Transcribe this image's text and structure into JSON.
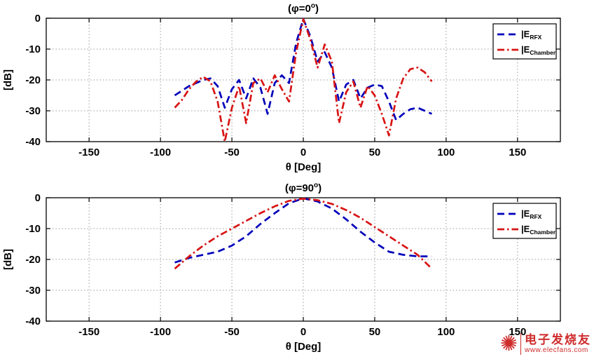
{
  "page": {
    "background": "#ffffff"
  },
  "watermark": {
    "icon": "✺",
    "line1": "电子发烧友",
    "line2": "www.elecfans.com",
    "color": "#cc2020"
  },
  "chart_data": [
    {
      "type": "line",
      "title": {
        "pre": "(φ=0",
        "sup": "o",
        "post": ")"
      },
      "xlabel": "θ [Deg]",
      "ylabel": "[dB]",
      "xlim": [
        -180,
        180
      ],
      "ylim": [
        -40,
        0
      ],
      "xticks": [
        -150,
        -100,
        -50,
        0,
        50,
        100,
        150
      ],
      "yticks": [
        0,
        -10,
        -20,
        -30,
        -40
      ],
      "grid": true,
      "legend_position": "top-right",
      "series": [
        {
          "name": "E_RFX",
          "legend_pre": "|E",
          "legend_sub": "RFX",
          "color": "#0000bb",
          "style": "dashed",
          "x": [
            -90,
            -85,
            -80,
            -75,
            -70,
            -65,
            -60,
            -55,
            -50,
            -45,
            -40,
            -35,
            -30,
            -25,
            -20,
            -15,
            -10,
            -5,
            0,
            5,
            10,
            15,
            20,
            25,
            30,
            35,
            40,
            45,
            50,
            55,
            60,
            65,
            70,
            75,
            80,
            85,
            90
          ],
          "y": [
            -25,
            -23.5,
            -22,
            -21,
            -20,
            -19.5,
            -22,
            -29,
            -23,
            -20,
            -26,
            -19.5,
            -22.5,
            -31,
            -21,
            -18.5,
            -21,
            -8,
            -0.2,
            -6,
            -14,
            -11,
            -16,
            -27,
            -21.5,
            -20,
            -26,
            -22.5,
            -21.5,
            -22,
            -27,
            -33,
            -31,
            -29.5,
            -29,
            -30,
            -31
          ]
        },
        {
          "name": "E_Chamber",
          "legend_pre": "|E",
          "legend_sub": "Chamber",
          "color": "#d81414",
          "style": "dashdot",
          "x": [
            -90,
            -85,
            -80,
            -75,
            -70,
            -65,
            -60,
            -55,
            -50,
            -45,
            -40,
            -35,
            -30,
            -25,
            -20,
            -15,
            -10,
            -5,
            0,
            5,
            10,
            15,
            20,
            25,
            30,
            35,
            40,
            45,
            50,
            55,
            60,
            65,
            70,
            75,
            80,
            85,
            90
          ],
          "y": [
            -29,
            -26.5,
            -23,
            -20.5,
            -19,
            -20.5,
            -27,
            -40,
            -29,
            -22,
            -34,
            -21,
            -19.5,
            -24,
            -18.5,
            -23,
            -27,
            -11,
            -0.3,
            -7,
            -16,
            -8.5,
            -14,
            -34,
            -24,
            -20.5,
            -29,
            -22,
            -25,
            -31,
            -38,
            -26,
            -19.5,
            -16.5,
            -16,
            -17.5,
            -20.5
          ]
        }
      ]
    },
    {
      "type": "line",
      "title": {
        "pre": "(φ=90",
        "sup": "o",
        "post": ")"
      },
      "xlabel": "θ [Deg]",
      "ylabel": "[dB]",
      "xlim": [
        -180,
        180
      ],
      "ylim": [
        -40,
        0
      ],
      "xticks": [
        -150,
        -100,
        -50,
        0,
        50,
        100,
        150
      ],
      "yticks": [
        0,
        -10,
        -20,
        -30,
        -40
      ],
      "grid": true,
      "legend_position": "top-right",
      "series": [
        {
          "name": "E_RFX",
          "legend_pre": "|E",
          "legend_sub": "RFX",
          "color": "#0000bb",
          "style": "dashed",
          "x": [
            -90,
            -80,
            -70,
            -60,
            -50,
            -40,
            -30,
            -20,
            -10,
            0,
            10,
            20,
            30,
            40,
            50,
            60,
            70,
            80,
            90
          ],
          "y": [
            -21,
            -19.5,
            -18.5,
            -17.5,
            -15.5,
            -12.5,
            -8.5,
            -5,
            -1.8,
            -0.2,
            -1.2,
            -3.5,
            -7,
            -11,
            -14.5,
            -17.5,
            -18.5,
            -19,
            -19
          ]
        },
        {
          "name": "E_Chamber",
          "legend_pre": "|E",
          "legend_sub": "Chamber",
          "color": "#d81414",
          "style": "dashdot",
          "x": [
            -90,
            -80,
            -70,
            -60,
            -50,
            -40,
            -30,
            -20,
            -10,
            0,
            10,
            20,
            30,
            40,
            50,
            60,
            70,
            80,
            90
          ],
          "y": [
            -23,
            -19,
            -15.5,
            -12.5,
            -10,
            -7.5,
            -5,
            -2.8,
            -1,
            -0.3,
            -0.8,
            -2,
            -4,
            -6.5,
            -9.5,
            -12.5,
            -15.5,
            -18.5,
            -23
          ]
        }
      ]
    }
  ]
}
